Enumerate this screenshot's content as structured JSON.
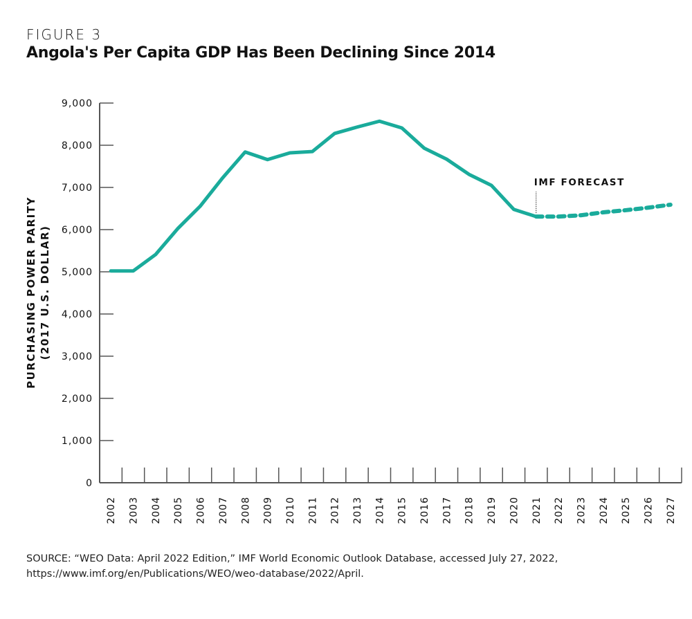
{
  "figure_label": "FIGURE 3",
  "title": "Angola's Per Capita GDP Has Been Declining Since 2014",
  "source": [
    "SOURCE: “WEO Data: April 2022 Edition,” IMF World Economic Outlook Database, accessed July 27, 2022,",
    "https://www.imf.org/en/Publications/WEO/weo-database/2022/April."
  ],
  "chart_data": {
    "type": "line",
    "title": "Angola's Per Capita GDP Has Been Declining Since 2014",
    "ylabel": [
      "PURCHASING POWER PARITY",
      "(2017 U.S. DOLLAR)"
    ],
    "xlabel": "",
    "ylim": [
      0,
      9000
    ],
    "yticks": [
      "0",
      "1,000",
      "2,000",
      "3,000",
      "4,000",
      "5,000",
      "6,000",
      "7,000",
      "8,000",
      "9,000"
    ],
    "x": [
      "2002",
      "2003",
      "2004",
      "2005",
      "2006",
      "2007",
      "2008",
      "2009",
      "2010",
      "2011",
      "2012",
      "2013",
      "2014",
      "2015",
      "2016",
      "2017",
      "2018",
      "2019",
      "2020",
      "2021",
      "2022",
      "2023",
      "2024",
      "2025",
      "2026",
      "2027"
    ],
    "values": [
      5020,
      5020,
      5410,
      6030,
      6560,
      7230,
      7840,
      7660,
      7820,
      7850,
      8280,
      8430,
      8570,
      8410,
      7930,
      7670,
      7310,
      7050,
      6480,
      6310,
      6310,
      6340,
      6410,
      6460,
      6520,
      6590
    ],
    "forecast_start": "2021",
    "annotation": "IMF FORECAST",
    "grid": false,
    "line_color": "#1aab9b"
  }
}
